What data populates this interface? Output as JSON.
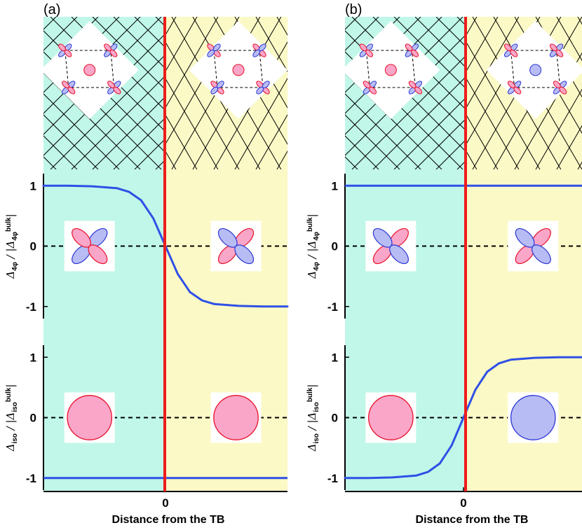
{
  "colors": {
    "left_domain": "#c0f7e8",
    "right_domain": "#fbf9c6",
    "boundary": "#ee1c1c",
    "curve": "#2f50e6",
    "positive_lobe": "#f9a6c8",
    "positive_lobe_edge": "#e8102a",
    "negative_lobe": "#b8bcf4",
    "negative_lobe_edge": "#2a36d2",
    "grid_line": "#000000"
  },
  "panels": [
    {
      "label": "(a)",
      "lattice": {
        "left_center_sign": "positive",
        "right_center_sign": "positive",
        "left_orbitals": [
          "a",
          "a",
          "a",
          "a"
        ],
        "right_orbitals": [
          "b",
          "b",
          "b",
          "b"
        ]
      },
      "top_insets": {
        "left": "positive",
        "right": "negative"
      },
      "bottom_insets": {
        "left": "positive",
        "right": "positive"
      }
    },
    {
      "label": "(b)",
      "lattice": {
        "left_center_sign": "positive",
        "right_center_sign": "negative",
        "left_orbitals": [
          "a",
          "a",
          "a",
          "a"
        ],
        "right_orbitals": [
          "a",
          "a",
          "a",
          "a"
        ]
      },
      "top_insets": {
        "left": "negative",
        "right": "negative"
      },
      "bottom_insets": {
        "left": "positive",
        "right": "negative"
      }
    }
  ],
  "chart_data": [
    {
      "type": "line",
      "panel": "(a)",
      "subplot": "top",
      "ylabel": "Δ4φ / |Δ4φbulk|",
      "ylabel_parts": {
        "main": "Δ",
        "sub": "4φ",
        "mid": " / |Δ",
        "sub2": "4φ",
        "sup2": "bulk",
        "end": "|"
      },
      "xlim": [
        -1,
        1
      ],
      "ylim": [
        -1.2,
        1.2
      ],
      "yticks": [
        1,
        0,
        -1
      ],
      "ytick_labels": [
        "1",
        "0",
        "-1"
      ],
      "x": [
        -1.0,
        -0.8,
        -0.6,
        -0.4,
        -0.3,
        -0.2,
        -0.1,
        0.0,
        0.1,
        0.2,
        0.3,
        0.4,
        0.6,
        0.8,
        1.0
      ],
      "y": [
        1.0,
        1.0,
        0.99,
        0.96,
        0.9,
        0.76,
        0.46,
        0.0,
        -0.46,
        -0.76,
        -0.9,
        -0.96,
        -0.99,
        -1.0,
        -1.0
      ]
    },
    {
      "type": "line",
      "panel": "(a)",
      "subplot": "bottom",
      "ylabel": "Δiso / |Δisobulk|",
      "ylabel_parts": {
        "main": "Δ",
        "sub": "iso",
        "mid": " / |Δ",
        "sub2": "iso",
        "sup2": "bulk",
        "end": "|"
      },
      "xlabel": "Distance from the TB",
      "xticks": [
        0
      ],
      "xtick_labels": [
        "0"
      ],
      "xlim": [
        -1,
        1
      ],
      "ylim": [
        -1.2,
        1.2
      ],
      "yticks": [
        1,
        0,
        -1
      ],
      "ytick_labels": [
        "1",
        "0",
        "-1"
      ],
      "x": [
        -1.0,
        0.0,
        1.0
      ],
      "y": [
        -1.0,
        -1.0,
        -1.0
      ]
    },
    {
      "type": "line",
      "panel": "(b)",
      "subplot": "top",
      "ylabel": "Δ4φ / |Δ4φbulk|",
      "ylabel_parts": {
        "main": "Δ",
        "sub": "4φ",
        "mid": " / |Δ",
        "sub2": "4φ",
        "sup2": "bulk",
        "end": "|"
      },
      "xlim": [
        -1,
        1
      ],
      "ylim": [
        -1.2,
        1.2
      ],
      "yticks": [
        1,
        0,
        -1
      ],
      "ytick_labels": [
        "1",
        "0",
        "-1"
      ],
      "x": [
        -1.0,
        0.0,
        1.0
      ],
      "y": [
        1.0,
        1.0,
        1.0
      ]
    },
    {
      "type": "line",
      "panel": "(b)",
      "subplot": "bottom",
      "ylabel": "Δiso / |Δisobulk|",
      "ylabel_parts": {
        "main": "Δ",
        "sub": "iso",
        "mid": " / |Δ",
        "sub2": "iso",
        "sup2": "bulk",
        "end": "|"
      },
      "xlabel": "Distance from the TB",
      "xticks": [
        0
      ],
      "xtick_labels": [
        "0"
      ],
      "xlim": [
        -1,
        1
      ],
      "ylim": [
        -1.2,
        1.2
      ],
      "yticks": [
        1,
        0,
        -1
      ],
      "ytick_labels": [
        "1",
        "0",
        "-1"
      ],
      "x": [
        -1.0,
        -0.8,
        -0.6,
        -0.4,
        -0.3,
        -0.2,
        -0.1,
        0.0,
        0.1,
        0.2,
        0.3,
        0.4,
        0.6,
        0.8,
        1.0
      ],
      "y": [
        -1.0,
        -1.0,
        -0.99,
        -0.96,
        -0.9,
        -0.76,
        -0.46,
        0.0,
        0.46,
        0.76,
        0.9,
        0.96,
        0.99,
        1.0,
        1.0
      ]
    }
  ]
}
